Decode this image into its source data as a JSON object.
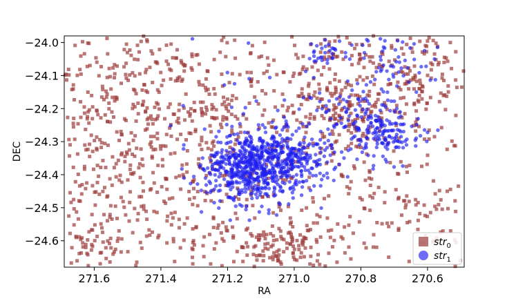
{
  "chart_data": {
    "type": "scatter",
    "xlabel": "RA",
    "ylabel": "DEC",
    "xlim": [
      271.69,
      270.49
    ],
    "ylim": [
      -24.68,
      -23.98
    ],
    "x_reversed": true,
    "xticks": [
      271.6,
      271.4,
      271.2,
      271.0,
      270.8,
      270.6
    ],
    "xtick_labels": [
      "271.6",
      "271.4",
      "271.2",
      "271.0",
      "270.8",
      "270.6"
    ],
    "yticks": [
      -24.0,
      -24.1,
      -24.2,
      -24.3,
      -24.4,
      -24.5,
      -24.6
    ],
    "ytick_labels": [
      "−24.0",
      "−24.1",
      "−24.2",
      "−24.3",
      "−24.4",
      "−24.5",
      "−24.6"
    ],
    "grid": false,
    "legend_position": "lower-right",
    "series": [
      {
        "label_text": "str",
        "label_sub": "0",
        "marker": "square",
        "color": "#9c3a3a",
        "opacity": 0.7,
        "clusters": [
          {
            "ra": 271.55,
            "dec": -24.15,
            "sra": 0.18,
            "sdec": 0.16,
            "n": 320
          },
          {
            "ra": 271.45,
            "dec": -24.45,
            "sra": 0.2,
            "sdec": 0.15,
            "n": 200
          },
          {
            "ra": 271.25,
            "dec": -24.2,
            "sra": 0.15,
            "sdec": 0.15,
            "n": 160
          },
          {
            "ra": 271.05,
            "dec": -24.62,
            "sra": 0.12,
            "sdec": 0.05,
            "n": 160
          },
          {
            "ra": 270.85,
            "dec": -24.2,
            "sra": 0.1,
            "sdec": 0.06,
            "n": 140
          },
          {
            "ra": 270.62,
            "dec": -24.1,
            "sra": 0.1,
            "sdec": 0.08,
            "n": 150
          },
          {
            "ra": 270.65,
            "dec": -24.5,
            "sra": 0.12,
            "sdec": 0.1,
            "n": 110
          },
          {
            "ra": 270.9,
            "dec": -24.05,
            "sra": 0.1,
            "sdec": 0.05,
            "n": 70
          },
          {
            "ra": 271.6,
            "dec": -24.62,
            "sra": 0.06,
            "sdec": 0.05,
            "n": 50
          },
          {
            "ra": 271.1,
            "dec": -24.35,
            "sra": 0.28,
            "sdec": 0.18,
            "n": 240
          }
        ]
      },
      {
        "label_text": "str",
        "label_sub": "1",
        "marker": "circle",
        "color": "#1f1ff0",
        "opacity": 0.65,
        "clusters": [
          {
            "ra": 271.1,
            "dec": -24.37,
            "sra": 0.07,
            "sdec": 0.05,
            "n": 520
          },
          {
            "ra": 271.0,
            "dec": -24.35,
            "sra": 0.07,
            "sdec": 0.04,
            "n": 140
          },
          {
            "ra": 270.72,
            "dec": -24.28,
            "sra": 0.05,
            "sdec": 0.04,
            "n": 120
          },
          {
            "ra": 270.82,
            "dec": -24.22,
            "sra": 0.07,
            "sdec": 0.04,
            "n": 80
          },
          {
            "ra": 271.2,
            "dec": -24.4,
            "sra": 0.05,
            "sdec": 0.05,
            "n": 110
          },
          {
            "ra": 270.7,
            "dec": -24.08,
            "sra": 0.07,
            "sdec": 0.05,
            "n": 60
          },
          {
            "ra": 270.9,
            "dec": -24.03,
            "sra": 0.03,
            "sdec": 0.02,
            "n": 30
          },
          {
            "ra": 271.0,
            "dec": -24.25,
            "sra": 0.15,
            "sdec": 0.12,
            "n": 60
          }
        ]
      }
    ]
  }
}
